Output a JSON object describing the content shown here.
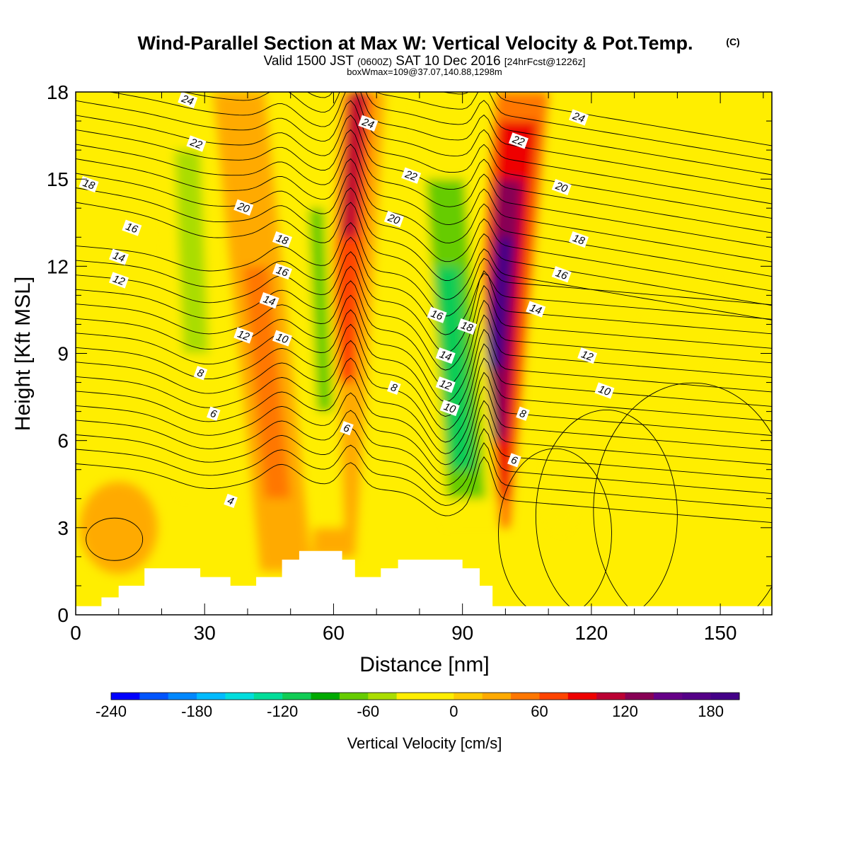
{
  "title": "Wind-Parallel Section at Max W: Vertical Velocity & Pot.Temp.",
  "title_mark": "(C)",
  "subtitle_main": "Valid 1500 JST",
  "subtitle_utc": "(0600Z)",
  "subtitle_date": "SAT 10 Dec 2016",
  "subtitle_fcst": "[24hrFcst@1226z]",
  "info_line": "boxWmax=109@37.07,140.88,1298m",
  "chart_data": {
    "type": "heatmap",
    "xlabel": "Distance [nm]",
    "ylabel": "Height [Kft MSL]",
    "xlim": [
      0,
      162
    ],
    "ylim": [
      0,
      18
    ],
    "x_ticks": [
      0,
      30,
      60,
      90,
      120,
      150
    ],
    "y_ticks": [
      0,
      3,
      6,
      9,
      12,
      15,
      18
    ],
    "x_minor_step": 10,
    "grid": false,
    "colorbar": {
      "label": "Vertical Velocity [cm/s]",
      "min": -240,
      "max": 200,
      "step": 20,
      "ticks": [
        -240,
        -180,
        -120,
        -60,
        0,
        60,
        120,
        180
      ],
      "colors": [
        "#0000ff",
        "#0055ff",
        "#0088ff",
        "#00bbff",
        "#00dddd",
        "#00dd99",
        "#11cc55",
        "#00aa00",
        "#66cc00",
        "#aadd00",
        "#ffee00",
        "#ffee00",
        "#ffcc00",
        "#ffaa00",
        "#ff7700",
        "#ff4400",
        "#ee0000",
        "#bb0033",
        "#880055",
        "#660088",
        "#550088",
        "#440088"
      ]
    },
    "updraft_cores": [
      {
        "x": 64,
        "z": 16.5,
        "w": 110
      },
      {
        "x": 98,
        "z": 11,
        "w": 180
      },
      {
        "x": 45,
        "z": 7,
        "w": 45
      }
    ],
    "downdraft_cores": [
      {
        "x": 88,
        "z": 9,
        "w": -120
      },
      {
        "x": 57,
        "z": 11,
        "w": -70
      },
      {
        "x": 30,
        "z": 15,
        "w": -60
      }
    ],
    "terrain_kft": [
      {
        "x": 0,
        "z": 0.3
      },
      {
        "x": 6,
        "z": 0.6
      },
      {
        "x": 10,
        "z": 1.0
      },
      {
        "x": 16,
        "z": 1.6
      },
      {
        "x": 28,
        "z": 1.6
      },
      {
        "x": 29,
        "z": 1.3
      },
      {
        "x": 36,
        "z": 1.0
      },
      {
        "x": 42,
        "z": 1.3
      },
      {
        "x": 48,
        "z": 1.9
      },
      {
        "x": 52,
        "z": 2.2
      },
      {
        "x": 62,
        "z": 1.9
      },
      {
        "x": 65,
        "z": 1.3
      },
      {
        "x": 71,
        "z": 1.6
      },
      {
        "x": 75,
        "z": 1.9
      },
      {
        "x": 90,
        "z": 1.6
      },
      {
        "x": 94,
        "z": 1.0
      },
      {
        "x": 97,
        "z": 0.3
      },
      {
        "x": 162,
        "z": 0.3
      }
    ],
    "theta_contours": [
      {
        "label": "4",
        "label_x": 36,
        "label_z": 3.9
      },
      {
        "label": "6",
        "label_x": 32,
        "label_z": 6.9
      },
      {
        "label": "6",
        "label_x": 63,
        "label_z": 6.4
      },
      {
        "label": "6",
        "label_x": 102,
        "label_z": 5.3
      },
      {
        "label": "8",
        "label_x": 29,
        "label_z": 8.3
      },
      {
        "label": "8",
        "label_x": 74,
        "label_z": 7.8
      },
      {
        "label": "8",
        "label_x": 104,
        "label_z": 6.9
      },
      {
        "label": "10",
        "label_x": 48,
        "label_z": 9.5
      },
      {
        "label": "10",
        "label_x": 87,
        "label_z": 7.1
      },
      {
        "label": "10",
        "label_x": 123,
        "label_z": 7.7
      },
      {
        "label": "12",
        "label_x": 10,
        "label_z": 11.5
      },
      {
        "label": "12",
        "label_x": 39,
        "label_z": 9.6
      },
      {
        "label": "12",
        "label_x": 86,
        "label_z": 7.9
      },
      {
        "label": "12",
        "label_x": 119,
        "label_z": 8.9
      },
      {
        "label": "14",
        "label_x": 10,
        "label_z": 12.3
      },
      {
        "label": "14",
        "label_x": 45,
        "label_z": 10.8
      },
      {
        "label": "14",
        "label_x": 86,
        "label_z": 8.9
      },
      {
        "label": "14",
        "label_x": 107,
        "label_z": 10.5
      },
      {
        "label": "16",
        "label_x": 13,
        "label_z": 13.3
      },
      {
        "label": "16",
        "label_x": 48,
        "label_z": 11.8
      },
      {
        "label": "16",
        "label_x": 84,
        "label_z": 10.3
      },
      {
        "label": "16",
        "label_x": 113,
        "label_z": 11.7
      },
      {
        "label": "18",
        "label_x": 3,
        "label_z": 14.8
      },
      {
        "label": "18",
        "label_x": 48,
        "label_z": 12.9
      },
      {
        "label": "18",
        "label_x": 91,
        "label_z": 9.9
      },
      {
        "label": "18",
        "label_x": 117,
        "label_z": 12.9
      },
      {
        "label": "20",
        "label_x": 39,
        "label_z": 14.0
      },
      {
        "label": "20",
        "label_x": 74,
        "label_z": 13.6
      },
      {
        "label": "20",
        "label_x": 113,
        "label_z": 14.7
      },
      {
        "label": "22",
        "label_x": 28,
        "label_z": 16.2
      },
      {
        "label": "22",
        "label_x": 78,
        "label_z": 15.1
      },
      {
        "label": "22",
        "label_x": 103,
        "label_z": 16.3
      },
      {
        "label": "24",
        "label_x": 26,
        "label_z": 17.7
      },
      {
        "label": "24",
        "label_x": 68,
        "label_z": 16.9
      },
      {
        "label": "24",
        "label_x": 117,
        "label_z": 17.1
      }
    ]
  }
}
